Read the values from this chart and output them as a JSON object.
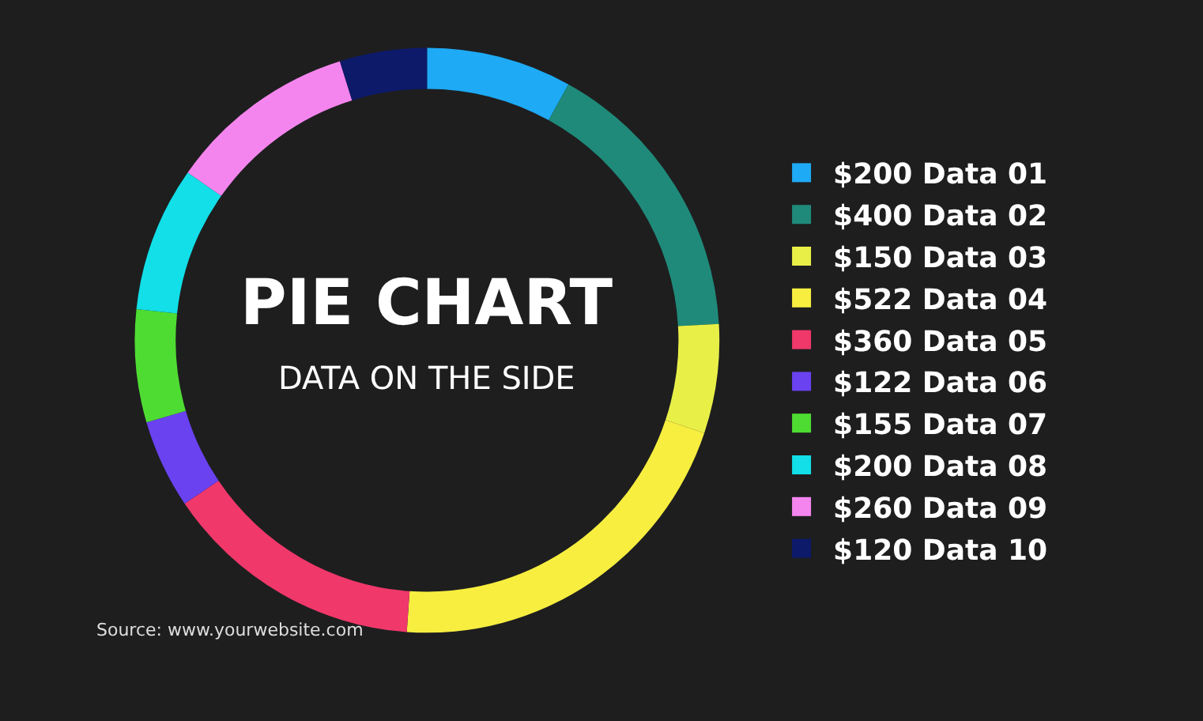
{
  "chart_data": {
    "type": "donut",
    "title": "PIE CHART",
    "subtitle": "DATA ON THE SIDE",
    "categories": [
      "Data 01",
      "Data 02",
      "Data 03",
      "Data 04",
      "Data 05",
      "Data 06",
      "Data 07",
      "Data 08",
      "Data 09",
      "Data 10"
    ],
    "values": [
      200,
      400,
      150,
      522,
      360,
      122,
      155,
      200,
      260,
      120
    ],
    "value_labels": [
      "$200",
      "$400",
      "$150",
      "$522",
      "$360",
      "$122",
      "$155",
      "$200",
      "$260",
      "$120"
    ],
    "colors": [
      "#1eaaf5",
      "#1f8a7a",
      "#e8f048",
      "#f7ee40",
      "#f0386a",
      "#6a42f0",
      "#4fdc32",
      "#12dfe8",
      "#f585ee",
      "#0d1a6a"
    ],
    "legend": "right",
    "annotations": [
      "Source: www.yourwebsite.com"
    ]
  }
}
